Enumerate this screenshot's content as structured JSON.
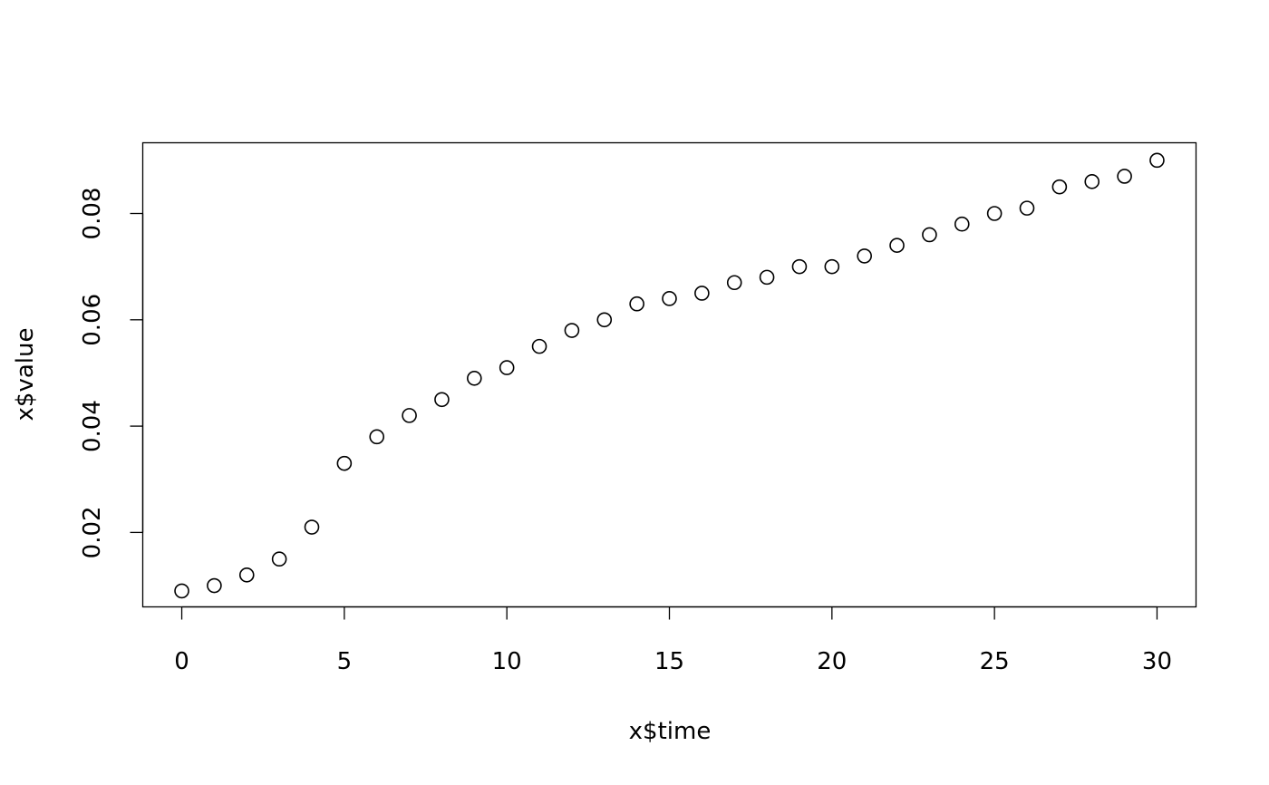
{
  "chart_data": {
    "type": "scatter",
    "title": "",
    "xlabel": "x$time",
    "ylabel": "x$value",
    "xlim": [
      -1.2,
      31.2
    ],
    "ylim": [
      0.006,
      0.0933
    ],
    "x_ticks": [
      0,
      5,
      10,
      15,
      20,
      25,
      30
    ],
    "x_tick_labels": [
      "0",
      "5",
      "10",
      "15",
      "20",
      "25",
      "30"
    ],
    "y_ticks": [
      0.02,
      0.04,
      0.06,
      0.08
    ],
    "y_tick_labels": [
      "0.02",
      "0.04",
      "0.06",
      "0.08"
    ],
    "grid": false,
    "marker": "open-circle",
    "color": "#000000",
    "x": [
      0,
      1,
      2,
      3,
      4,
      5,
      6,
      7,
      8,
      9,
      10,
      11,
      12,
      13,
      14,
      15,
      16,
      17,
      18,
      19,
      20,
      21,
      22,
      23,
      24,
      25,
      26,
      27,
      28,
      29,
      30
    ],
    "y": [
      0.009,
      0.01,
      0.012,
      0.015,
      0.021,
      0.033,
      0.038,
      0.042,
      0.045,
      0.049,
      0.051,
      0.055,
      0.058,
      0.06,
      0.063,
      0.064,
      0.065,
      0.067,
      0.068,
      0.07,
      0.07,
      0.072,
      0.074,
      0.076,
      0.078,
      0.08,
      0.081,
      0.085,
      0.086,
      0.087,
      0.09
    ]
  }
}
